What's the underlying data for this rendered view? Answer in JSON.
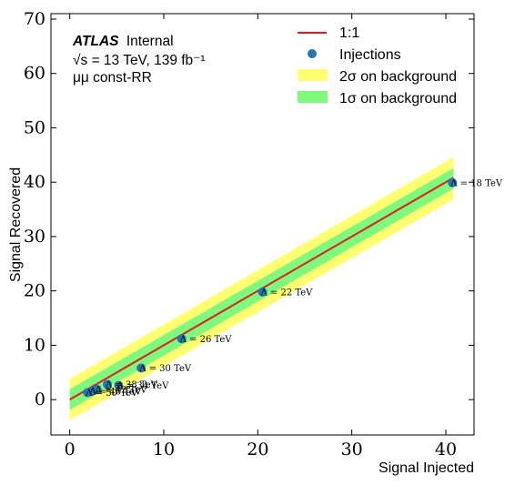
{
  "chart_data": {
    "type": "scatter",
    "xlabel": "Signal Injected",
    "ylabel": "Signal Recovered",
    "xlim": [
      -2,
      43
    ],
    "ylim": [
      -6.5,
      71
    ],
    "xticks": [
      0,
      10,
      20,
      30,
      40
    ],
    "yticks": [
      0,
      10,
      20,
      30,
      40,
      50,
      60,
      70
    ],
    "x_tick_labels": [
      "0",
      "10",
      "20",
      "30",
      "40"
    ],
    "y_tick_labels": [
      "0",
      "10",
      "20",
      "30",
      "40",
      "50",
      "60",
      "70"
    ],
    "grid": false,
    "legend_position": "top-right",
    "annotation": {
      "experiment": "ATLAS",
      "status": "Internal",
      "energy_line": "√s = 13 TeV, 139 fb⁻¹",
      "channel_line": "μμ const-RR"
    },
    "reference_line": {
      "name": "1:1",
      "x": [
        0,
        40.8
      ],
      "y": [
        0,
        40.8
      ],
      "color": "#e41a1c"
    },
    "bands": [
      {
        "name": "2σ on background",
        "color": "#ffff70",
        "lower_at_0": -3.8,
        "upper_at_0": 3.8,
        "lower_at_40.8": 36.8,
        "upper_at_40.8": 44.6
      },
      {
        "name": "1σ on background",
        "color": "#7dfa7d",
        "lower_at_0": -1.9,
        "upper_at_0": 1.9,
        "lower_at_40.8": 38.8,
        "upper_at_40.8": 42.6
      }
    ],
    "series": [
      {
        "name": "Injections",
        "color": "#1f77b4",
        "points": [
          {
            "x": 40.7,
            "y": 39.9,
            "label": "Λ = 18 TeV"
          },
          {
            "x": 20.5,
            "y": 19.8,
            "label": "Λ = 22 TeV"
          },
          {
            "x": 11.9,
            "y": 11.2,
            "label": "Λ = 26 TeV"
          },
          {
            "x": 7.6,
            "y": 5.8,
            "label": "Λ = 30 TeV"
          },
          {
            "x": 5.2,
            "y": 2.6,
            "label": "Λ = 34 TeV"
          },
          {
            "x": 4.0,
            "y": 2.8,
            "label": "Λ = 38 TeV"
          },
          {
            "x": 2.9,
            "y": 1.9,
            "label": "Λ = 42 TeV"
          },
          {
            "x": 2.3,
            "y": 1.5,
            "label": "Λ = 46 TeV"
          },
          {
            "x": 1.9,
            "y": 1.3,
            "label": "Λ = 50 TeV"
          }
        ]
      }
    ]
  }
}
